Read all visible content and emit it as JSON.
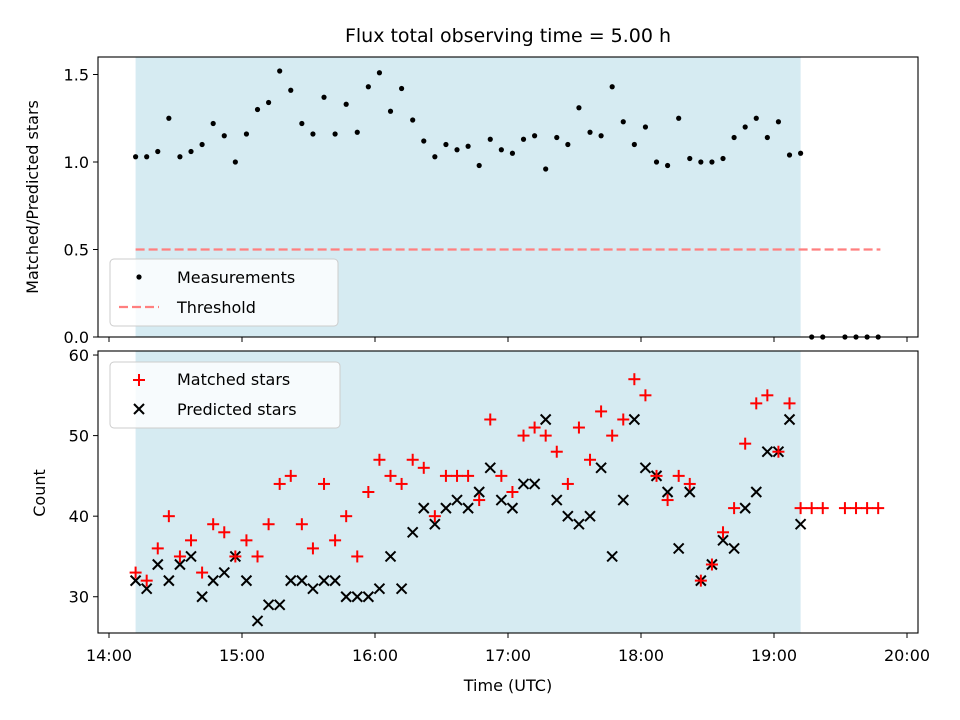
{
  "chart_data": [
    {
      "type": "scatter",
      "title": "Flux total observing time = 5.00 h",
      "xlabel": "",
      "ylabel": "Matched/Predicted stars",
      "xlim": [
        "14:00",
        "20:00"
      ],
      "ylim": [
        0,
        1.6
      ],
      "yticks": [
        0.0,
        0.5,
        1.0,
        1.5
      ],
      "ytick_labels": [
        "0.0",
        "0.5",
        "1.0",
        "1.5"
      ],
      "grid": false,
      "shaded_span": {
        "start": "14:12",
        "end": "19:12",
        "color": "#add8e6"
      },
      "threshold": {
        "value": 0.5,
        "start": "14:12",
        "end": "19:48",
        "color": "#ff7f7f"
      },
      "legend": {
        "placement": "lower-left",
        "entries": [
          {
            "label": "Measurements",
            "marker": "dot",
            "color": "#000000"
          },
          {
            "label": "Threshold",
            "marker": "dashed-line",
            "color": "#ff7f7f"
          }
        ]
      },
      "series": [
        {
          "label": "Measurements",
          "color": "#000000",
          "x": [
            "14:12",
            "14:17",
            "14:22",
            "14:27",
            "14:32",
            "14:37",
            "14:42",
            "14:47",
            "14:52",
            "14:57",
            "15:02",
            "15:07",
            "15:12",
            "15:17",
            "15:22",
            "15:27",
            "15:32",
            "15:37",
            "15:42",
            "15:47",
            "15:52",
            "15:57",
            "16:02",
            "16:07",
            "16:12",
            "16:17",
            "16:22",
            "16:27",
            "16:32",
            "16:37",
            "16:42",
            "16:47",
            "16:52",
            "16:57",
            "17:02",
            "17:07",
            "17:12",
            "17:17",
            "17:22",
            "17:27",
            "17:32",
            "17:37",
            "17:42",
            "17:47",
            "17:52",
            "17:57",
            "18:02",
            "18:07",
            "18:12",
            "18:17",
            "18:22",
            "18:27",
            "18:32",
            "18:37",
            "18:42",
            "18:47",
            "18:52",
            "18:57",
            "19:02",
            "19:07",
            "19:12",
            "19:17",
            "19:22",
            "19:32",
            "19:37",
            "19:42",
            "19:47"
          ],
          "y": [
            1.03,
            1.03,
            1.06,
            1.25,
            1.03,
            1.06,
            1.1,
            1.22,
            1.15,
            1.0,
            1.16,
            1.3,
            1.34,
            1.52,
            1.41,
            1.22,
            1.16,
            1.37,
            1.16,
            1.33,
            1.17,
            1.43,
            1.51,
            1.29,
            1.42,
            1.24,
            1.12,
            1.03,
            1.1,
            1.07,
            1.09,
            0.98,
            1.13,
            1.07,
            1.05,
            1.13,
            1.15,
            0.96,
            1.14,
            1.1,
            1.31,
            1.17,
            1.15,
            1.43,
            1.23,
            1.1,
            1.2,
            1.0,
            0.98,
            1.25,
            1.02,
            1.0,
            1.0,
            1.02,
            1.14,
            1.2,
            1.25,
            1.14,
            1.23,
            1.04,
            1.05,
            0,
            0,
            0,
            0,
            0,
            0
          ]
        }
      ]
    },
    {
      "type": "scatter",
      "title": "",
      "xlabel": "Time (UTC)",
      "ylabel": "Count",
      "xlim": [
        "14:00",
        "20:00"
      ],
      "xticks": [
        "14:00",
        "15:00",
        "16:00",
        "17:00",
        "18:00",
        "19:00",
        "20:00"
      ],
      "ylim": [
        25.5,
        60.5
      ],
      "yticks": [
        30,
        40,
        50,
        60
      ],
      "ytick_labels": [
        "30",
        "40",
        "50",
        "60"
      ],
      "grid": false,
      "shaded_span": {
        "start": "14:12",
        "end": "19:12",
        "color": "#add8e6"
      },
      "legend": {
        "placement": "top-left",
        "entries": [
          {
            "label": "Matched stars",
            "marker": "plus",
            "color": "#ff0000"
          },
          {
            "label": "Predicted stars",
            "marker": "x",
            "color": "#000000"
          }
        ]
      },
      "x": [
        "14:12",
        "14:17",
        "14:22",
        "14:27",
        "14:32",
        "14:37",
        "14:42",
        "14:47",
        "14:52",
        "14:57",
        "15:02",
        "15:07",
        "15:12",
        "15:17",
        "15:22",
        "15:27",
        "15:32",
        "15:37",
        "15:42",
        "15:47",
        "15:52",
        "15:57",
        "16:02",
        "16:07",
        "16:12",
        "16:17",
        "16:22",
        "16:27",
        "16:32",
        "16:37",
        "16:42",
        "16:47",
        "16:52",
        "16:57",
        "17:02",
        "17:07",
        "17:12",
        "17:17",
        "17:22",
        "17:27",
        "17:32",
        "17:37",
        "17:42",
        "17:47",
        "17:52",
        "17:57",
        "18:02",
        "18:07",
        "18:12",
        "18:17",
        "18:22",
        "18:27",
        "18:32",
        "18:37",
        "18:42",
        "18:47",
        "18:52",
        "18:57",
        "19:02",
        "19:07",
        "19:12",
        "19:17",
        "19:22",
        "19:32",
        "19:37",
        "19:42",
        "19:47"
      ],
      "series": [
        {
          "label": "Matched stars",
          "marker": "plus",
          "color": "#ff0000",
          "values": [
            33,
            32,
            36,
            40,
            35,
            37,
            33,
            39,
            38,
            35,
            37,
            35,
            39,
            44,
            45,
            39,
            36,
            44,
            37,
            40,
            35,
            43,
            47,
            45,
            44,
            47,
            46,
            40,
            45,
            45,
            45,
            42,
            52,
            45,
            43,
            50,
            51,
            50,
            48,
            44,
            51,
            47,
            53,
            50,
            52,
            57,
            55,
            45,
            42,
            45,
            44,
            32,
            34,
            38,
            41,
            49,
            54,
            55,
            48,
            54,
            41,
            41,
            41,
            41,
            41,
            41,
            41
          ]
        },
        {
          "label": "Predicted stars",
          "marker": "x",
          "color": "#000000",
          "values": [
            32,
            31,
            34,
            32,
            34,
            35,
            30,
            32,
            33,
            35,
            32,
            27,
            29,
            29,
            32,
            32,
            31,
            32,
            32,
            30,
            30,
            30,
            31,
            35,
            31,
            38,
            41,
            39,
            41,
            42,
            41,
            43,
            46,
            42,
            41,
            44,
            44,
            52,
            42,
            40,
            39,
            40,
            46,
            35,
            42,
            52,
            46,
            45,
            43,
            36,
            43,
            32,
            34,
            37,
            36,
            41,
            43,
            48,
            48,
            52,
            39,
            null,
            null,
            null,
            null,
            null,
            null
          ]
        }
      ]
    }
  ]
}
